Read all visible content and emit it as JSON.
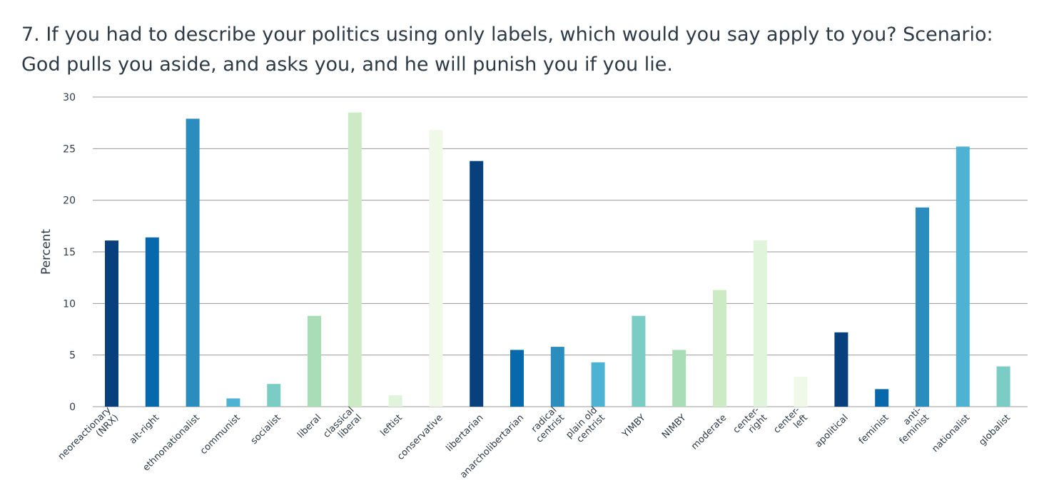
{
  "chart_data": {
    "type": "bar",
    "title": "7. If you had to describe your politics using only labels, which would you say apply to you? Scenario: God pulls you aside, and asks you, and he will punish you if you lie.",
    "xlabel": "",
    "ylabel": "Percent",
    "ylim": [
      0,
      30
    ],
    "yticks": [
      0,
      5,
      10,
      15,
      20,
      25,
      30
    ],
    "grid": true,
    "legend": "none",
    "categories": [
      "neoreactionary (NRX)",
      "alt-right",
      "ethnonationalist",
      "communist",
      "socialist",
      "liberal",
      "classical liberal",
      "leftist",
      "conservative",
      "libertarian",
      "anarcholibertarian",
      "radical centrist",
      "plain old centrist",
      "YIMBY",
      "NIMBY",
      "moderate",
      "center-right",
      "center-left",
      "apolitical",
      "feminist",
      "anti-feminist",
      "nationalist",
      "globalist"
    ],
    "category_lines": [
      [
        "neoreactionary",
        "(NRX)"
      ],
      [
        "alt-right"
      ],
      [
        "ethnonationalist"
      ],
      [
        "communist"
      ],
      [
        "socialist"
      ],
      [
        "liberal"
      ],
      [
        "classical",
        "liberal"
      ],
      [
        "leftist"
      ],
      [
        "conservative"
      ],
      [
        "libertarian"
      ],
      [
        "anarcholibertarian"
      ],
      [
        "radical",
        "centrist"
      ],
      [
        "plain old",
        "centrist"
      ],
      [
        "YIMBY"
      ],
      [
        "NIMBY"
      ],
      [
        "moderate"
      ],
      [
        "center-",
        "right"
      ],
      [
        "center-",
        "left"
      ],
      [
        "apolitical"
      ],
      [
        "feminist"
      ],
      [
        "anti-",
        "feminist"
      ],
      [
        "nationalist"
      ],
      [
        "globalist"
      ]
    ],
    "values": [
      16.1,
      16.4,
      27.9,
      0.8,
      2.2,
      8.8,
      28.5,
      1.1,
      26.8,
      23.8,
      5.5,
      5.8,
      4.3,
      8.8,
      5.5,
      11.3,
      16.1,
      2.9,
      7.2,
      1.7,
      19.3,
      25.2,
      3.9
    ],
    "colors": [
      "#08407e",
      "#0868ac",
      "#2b8cbe",
      "#4eb3d3",
      "#7bccc4",
      "#a8ddb5",
      "#ccebc5",
      "#e0f3db",
      "#f0f9e8",
      "#08407e",
      "#0868ac",
      "#2b8cbe",
      "#4eb3d3",
      "#7bccc4",
      "#a8ddb5",
      "#ccebc5",
      "#e0f3db",
      "#f0f9e8",
      "#08407e",
      "#0868ac",
      "#2b8cbe",
      "#4eb3d3",
      "#7bccc4"
    ]
  }
}
